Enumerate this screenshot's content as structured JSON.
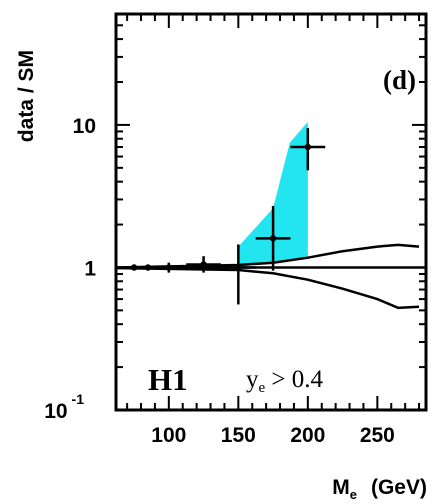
{
  "chart_data": {
    "type": "scatter",
    "panel_label": "(d)",
    "experiment_label": "H1",
    "cut_label": {
      "var": "y",
      "sub": "e",
      "rest": " > 0.4"
    },
    "xlabel": {
      "var": "M",
      "sub": "e",
      "unit": "(GeV)"
    },
    "ylabel": "data / SM",
    "x_scale": "linear",
    "y_scale": "log",
    "xlim": [
      62,
      285
    ],
    "ylim": [
      0.1,
      60
    ],
    "x_ticks": [
      100,
      150,
      200,
      250
    ],
    "y_ticks": [
      {
        "value": 10,
        "label": "10"
      },
      {
        "value": 1,
        "label": "1"
      },
      {
        "value": 0.1,
        "label": "10",
        "sup": "-1"
      }
    ],
    "reference_line": 1,
    "points": [
      {
        "x": 75,
        "y": 1.0,
        "xerr": 5,
        "ylo": 0.95,
        "yhi": 1.05
      },
      {
        "x": 85,
        "y": 1.0,
        "xerr": 5,
        "ylo": 0.95,
        "yhi": 1.05
      },
      {
        "x": 100,
        "y": 1.0,
        "xerr": 10,
        "ylo": 0.92,
        "yhi": 1.08
      },
      {
        "x": 125,
        "y": 1.05,
        "xerr": 12.5,
        "ylo": 0.92,
        "yhi": 1.2
      },
      {
        "x": 150,
        "y": 1.0,
        "xerr": 12.5,
        "ylo": 0.55,
        "yhi": 1.45
      },
      {
        "x": 175,
        "y": 1.6,
        "xerr": 12.5,
        "ylo": 0.95,
        "yhi": 2.7
      },
      {
        "x": 200,
        "y": 7.0,
        "xerr": 12.5,
        "ylo": 4.8,
        "yhi": 9.5
      }
    ],
    "shaded_band": {
      "color": "#22e5f0",
      "upper": [
        [
          150,
          1.4
        ],
        [
          175,
          2.6
        ],
        [
          187,
          7.5
        ],
        [
          200,
          10.5
        ]
      ],
      "lower": [
        [
          150,
          1.0
        ],
        [
          175,
          1.1
        ],
        [
          200,
          1.15
        ]
      ]
    },
    "uncertainty_upper": [
      [
        62,
        1.0
      ],
      [
        150,
        1.04
      ],
      [
        175,
        1.08
      ],
      [
        200,
        1.17
      ],
      [
        225,
        1.3
      ],
      [
        250,
        1.4
      ],
      [
        265,
        1.44
      ],
      [
        280,
        1.4
      ]
    ],
    "uncertainty_lower": [
      [
        62,
        0.99
      ],
      [
        150,
        0.96
      ],
      [
        175,
        0.91
      ],
      [
        200,
        0.82
      ],
      [
        225,
        0.71
      ],
      [
        250,
        0.6
      ],
      [
        265,
        0.52
      ],
      [
        280,
        0.53
      ]
    ]
  }
}
